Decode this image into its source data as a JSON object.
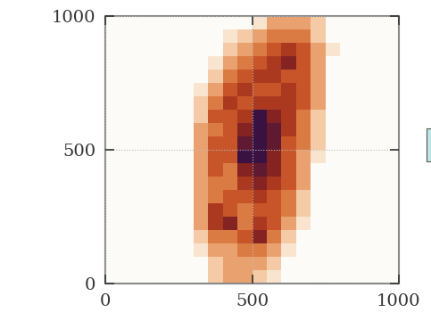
{
  "chart_data": {
    "type": "heatmap",
    "xlim": [
      0,
      1000
    ],
    "ylim": [
      0,
      1000
    ],
    "xticks": [
      0,
      500,
      1000
    ],
    "yticks": [
      0,
      500,
      1000
    ],
    "grid": true,
    "cells": [
      [
        0,
        0,
        0,
        0,
        0,
        0,
        0,
        2,
        3,
        3,
        2,
        1,
        0,
        0,
        0,
        0,
        0,
        0,
        0,
        0
      ],
      [
        0,
        0,
        0,
        0,
        0,
        0,
        0,
        2,
        3,
        3,
        3,
        2,
        0,
        0,
        0,
        0,
        0,
        0,
        0,
        0
      ],
      [
        0,
        0,
        0,
        0,
        0,
        0,
        1,
        3,
        3,
        4,
        4,
        3,
        1,
        0,
        0,
        0,
        0,
        0,
        0,
        0
      ],
      [
        0,
        0,
        0,
        0,
        0,
        0,
        2,
        4,
        4,
        5,
        7,
        4,
        2,
        0,
        0,
        0,
        0,
        0,
        0,
        0
      ],
      [
        0,
        0,
        0,
        0,
        0,
        0,
        3,
        6,
        7,
        4,
        6,
        5,
        3,
        1,
        0,
        0,
        0,
        0,
        0,
        0
      ],
      [
        0,
        0,
        0,
        0,
        0,
        0,
        3,
        6,
        5,
        4,
        5,
        5,
        4,
        2,
        0,
        0,
        0,
        0,
        0,
        0
      ],
      [
        0,
        0,
        0,
        0,
        0,
        0,
        3,
        4,
        5,
        5,
        6,
        5,
        4,
        2,
        0,
        0,
        0,
        0,
        0,
        0
      ],
      [
        0,
        0,
        0,
        0,
        0,
        0,
        3,
        4,
        4,
        6,
        7,
        6,
        5,
        3,
        0,
        0,
        0,
        0,
        0,
        0
      ],
      [
        0,
        0,
        0,
        0,
        0,
        0,
        3,
        5,
        4,
        7,
        8,
        7,
        5,
        3,
        0,
        0,
        0,
        0,
        0,
        0
      ],
      [
        0,
        0,
        0,
        0,
        0,
        0,
        3,
        5,
        5,
        9,
        9,
        7,
        5,
        3,
        1,
        0,
        0,
        0,
        0,
        0
      ],
      [
        0,
        0,
        0,
        0,
        0,
        0,
        3,
        5,
        5,
        8,
        9,
        8,
        5,
        4,
        2,
        0,
        0,
        0,
        0,
        0
      ],
      [
        0,
        0,
        0,
        0,
        0,
        0,
        3,
        4,
        5,
        7,
        9,
        8,
        6,
        4,
        2,
        0,
        0,
        0,
        0,
        0
      ],
      [
        0,
        0,
        0,
        0,
        0,
        0,
        2,
        5,
        5,
        6,
        9,
        7,
        6,
        4,
        2,
        0,
        0,
        0,
        0,
        0
      ],
      [
        0,
        0,
        0,
        0,
        0,
        0,
        2,
        4,
        6,
        5,
        6,
        6,
        6,
        5,
        3,
        0,
        0,
        0,
        0,
        0
      ],
      [
        0,
        0,
        0,
        0,
        0,
        0,
        1,
        3,
        5,
        6,
        5,
        5,
        6,
        5,
        3,
        0,
        0,
        0,
        0,
        0
      ],
      [
        0,
        0,
        0,
        0,
        0,
        0,
        0,
        2,
        4,
        5,
        6,
        6,
        5,
        5,
        3,
        0,
        0,
        0,
        0,
        0
      ],
      [
        0,
        0,
        0,
        0,
        0,
        0,
        0,
        1,
        3,
        4,
        5,
        6,
        7,
        5,
        3,
        0,
        0,
        0,
        0,
        0
      ],
      [
        0,
        0,
        0,
        0,
        0,
        0,
        0,
        0,
        2,
        3,
        4,
        5,
        6,
        5,
        3,
        1,
        0,
        0,
        0,
        0
      ],
      [
        0,
        0,
        0,
        0,
        0,
        0,
        0,
        0,
        1,
        2,
        3,
        4,
        4,
        4,
        2,
        0,
        0,
        0,
        0,
        0
      ],
      [
        0,
        0,
        0,
        0,
        0,
        0,
        0,
        0,
        0,
        0,
        1,
        3,
        3,
        3,
        2,
        0,
        0,
        0,
        0,
        0
      ]
    ]
  }
}
